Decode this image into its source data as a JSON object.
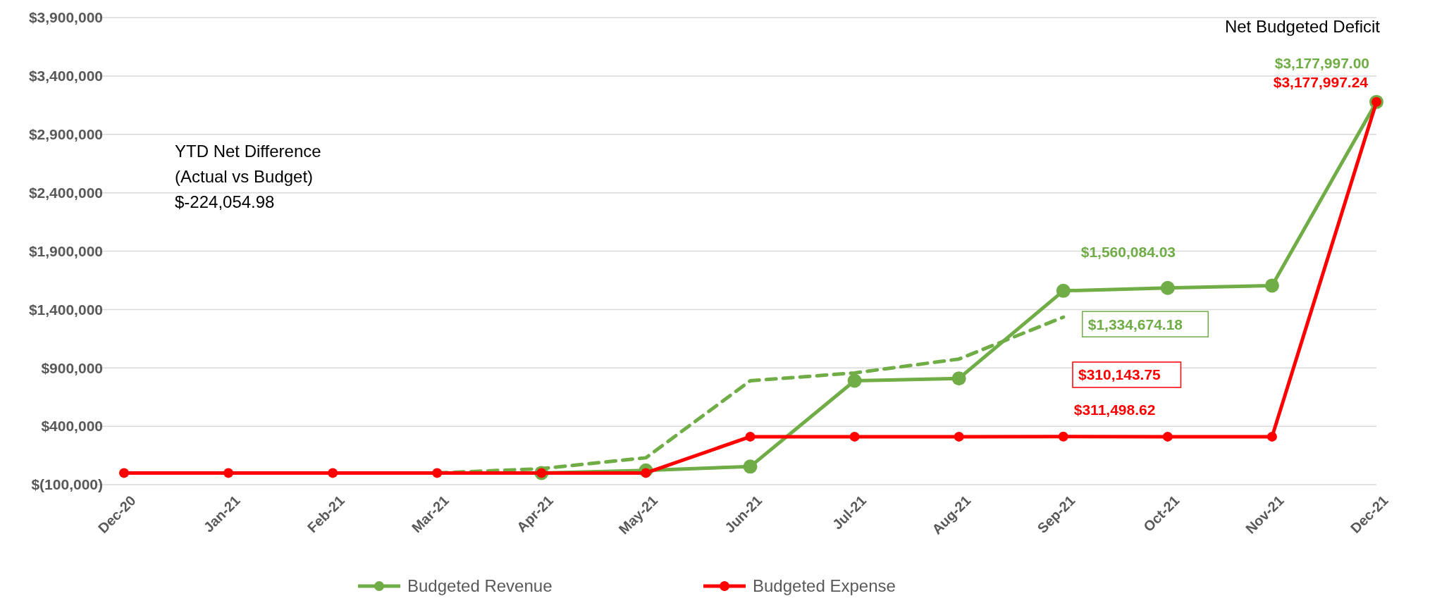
{
  "chart_data": {
    "type": "line",
    "categories": [
      "Dec-20",
      "Jan-21",
      "Feb-21",
      "Mar-21",
      "Apr-21",
      "May-21",
      "Jun-21",
      "Jul-21",
      "Aug-21",
      "Sep-21",
      "Oct-21",
      "Nov-21",
      "Dec-21"
    ],
    "series": [
      {
        "name": "Budgeted Revenue",
        "color": "#70ad47",
        "marker": "circle",
        "line_style": "solid",
        "values": [
          null,
          null,
          null,
          null,
          0,
          22000,
          55000,
          790000,
          810000,
          1560084.03,
          1585000,
          1605000,
          3177997.0
        ],
        "value_labels": [
          null,
          null,
          null,
          null,
          null,
          null,
          null,
          null,
          null,
          "$1,560,084.03",
          null,
          null,
          "$3,177,997.00"
        ]
      },
      {
        "color": "#70ad47",
        "marker": "none",
        "line_style": "dashed",
        "values": [
          null,
          null,
          null,
          0,
          37000,
          130000,
          790000,
          857000,
          976000,
          1334674.18,
          null,
          null,
          null
        ],
        "value_labels": [
          null,
          null,
          null,
          null,
          null,
          null,
          null,
          null,
          null,
          "$1,334,674.18",
          null,
          null,
          null
        ]
      },
      {
        "name": "Budgeted Expense",
        "color": "#ff0000",
        "marker": "circle",
        "line_style": "solid",
        "values": [
          0,
          0,
          0,
          0,
          0,
          0,
          311000,
          311000,
          311000,
          311498.62,
          311000,
          311000,
          3177997.24
        ],
        "value_labels": [
          null,
          null,
          null,
          null,
          null,
          null,
          null,
          null,
          null,
          "$311,498.62",
          null,
          null,
          "$3,177,997.24"
        ]
      }
    ],
    "ylim": [
      -100000,
      3900000
    ],
    "yticks": [
      {
        "value": -100000,
        "label": "$(100,000)"
      },
      {
        "value": 400000,
        "label": "$400,000"
      },
      {
        "value": 900000,
        "label": "$900,000"
      },
      {
        "value": 1400000,
        "label": "$1,400,000"
      },
      {
        "value": 1900000,
        "label": "$1,900,000"
      },
      {
        "value": 2400000,
        "label": "$2,400,000"
      },
      {
        "value": 2900000,
        "label": "$2,900,000"
      },
      {
        "value": 3400000,
        "label": "$3,400,000"
      },
      {
        "value": 3900000,
        "label": "$3,900,000"
      }
    ],
    "grid": "y",
    "legend": "bottom",
    "annotations": [
      "$310,143.75",
      "Net Budgeted Deficit",
      "YTD Net Difference\n(Actual vs Budget)\n$-224,054.98"
    ]
  }
}
